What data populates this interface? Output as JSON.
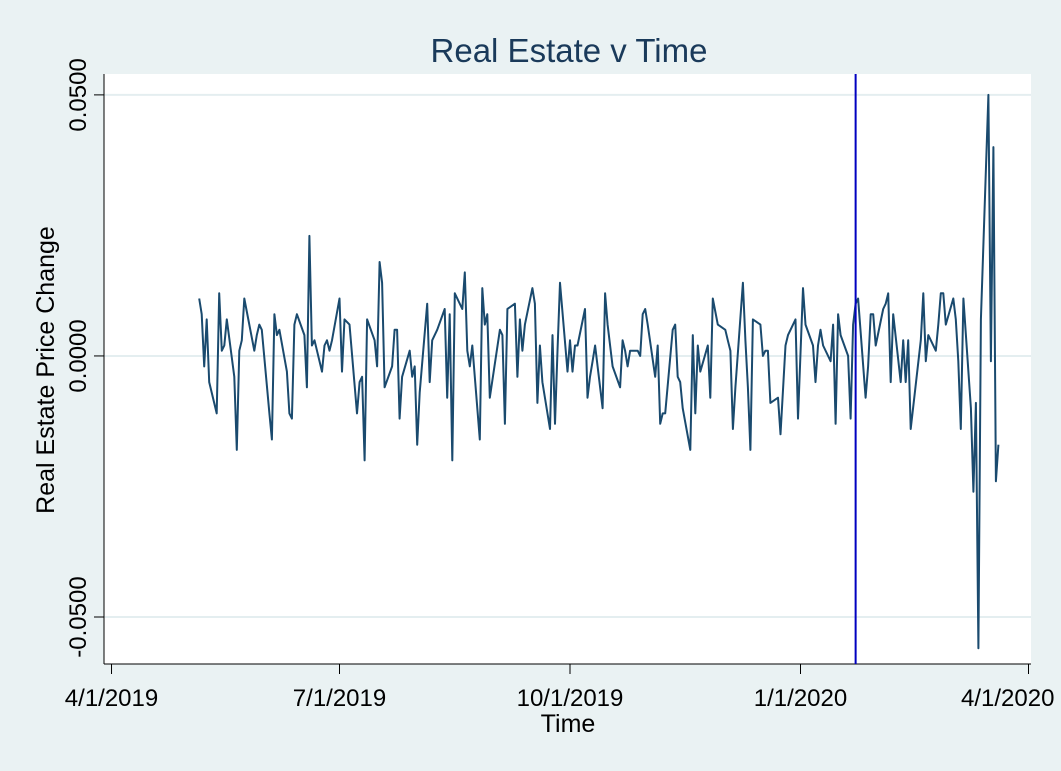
{
  "chart_data": {
    "type": "line",
    "title": "Real Estate v Time",
    "xlabel": "Time",
    "ylabel": "Real Estate Price Change",
    "x_ticks": [
      "4/1/2019",
      "7/1/2019",
      "10/1/2019",
      "1/1/2020",
      "4/1/2020"
    ],
    "y_ticks": [
      "-0.0500",
      "0.0000",
      "0.0500"
    ],
    "y_tick_values": [
      -0.05,
      0,
      0.05
    ],
    "xlim": [
      "2019-03-29",
      "2020-04-02"
    ],
    "ylim": [
      -0.059,
      0.054
    ],
    "grid": "horizontal",
    "reference_line": {
      "x": "2020-01-23",
      "color": "#0000c0"
    },
    "colors": {
      "series": "#1a4a6e",
      "background": "#eaf2f3",
      "plot_area": "#ffffff",
      "gridline": "#e4eef0"
    },
    "series": [
      {
        "values": [
          [
            "2019-05-06",
            0.011
          ],
          [
            "2019-05-07",
            0.008
          ],
          [
            "2019-05-08",
            -0.002
          ],
          [
            "2019-05-09",
            0.007
          ],
          [
            "2019-05-10",
            -0.005
          ],
          [
            "2019-05-13",
            -0.011
          ],
          [
            "2019-05-14",
            0.012
          ],
          [
            "2019-05-15",
            0.001
          ],
          [
            "2019-05-16",
            0.002
          ],
          [
            "2019-05-17",
            0.007
          ],
          [
            "2019-05-20",
            -0.004
          ],
          [
            "2019-05-21",
            -0.018
          ],
          [
            "2019-05-22",
            0.001
          ],
          [
            "2019-05-23",
            0.003
          ],
          [
            "2019-05-24",
            0.011
          ],
          [
            "2019-05-28",
            0.001
          ],
          [
            "2019-05-29",
            0.004
          ],
          [
            "2019-05-30",
            0.006
          ],
          [
            "2019-05-31",
            0.005
          ],
          [
            "2019-06-03",
            -0.011
          ],
          [
            "2019-06-04",
            -0.016
          ],
          [
            "2019-06-05",
            0.008
          ],
          [
            "2019-06-06",
            0.004
          ],
          [
            "2019-06-07",
            0.005
          ],
          [
            "2019-06-10",
            -0.003
          ],
          [
            "2019-06-11",
            -0.011
          ],
          [
            "2019-06-12",
            -0.012
          ],
          [
            "2019-06-13",
            0.006
          ],
          [
            "2019-06-14",
            0.008
          ],
          [
            "2019-06-17",
            0.004
          ],
          [
            "2019-06-18",
            -0.006
          ],
          [
            "2019-06-19",
            0.023
          ],
          [
            "2019-06-20",
            0.002
          ],
          [
            "2019-06-21",
            0.003
          ],
          [
            "2019-06-24",
            -0.003
          ],
          [
            "2019-06-25",
            0.002
          ],
          [
            "2019-06-26",
            0.003
          ],
          [
            "2019-06-27",
            0.001
          ],
          [
            "2019-06-28",
            0.003
          ],
          [
            "2019-07-01",
            0.011
          ],
          [
            "2019-07-02",
            -0.003
          ],
          [
            "2019-07-03",
            0.007
          ],
          [
            "2019-07-05",
            0.006
          ],
          [
            "2019-07-08",
            -0.011
          ],
          [
            "2019-07-09",
            -0.005
          ],
          [
            "2019-07-10",
            -0.004
          ],
          [
            "2019-07-11",
            -0.02
          ],
          [
            "2019-07-12",
            0.007
          ],
          [
            "2019-07-15",
            0.003
          ],
          [
            "2019-07-16",
            -0.002
          ],
          [
            "2019-07-17",
            0.018
          ],
          [
            "2019-07-18",
            0.014
          ],
          [
            "2019-07-19",
            -0.006
          ],
          [
            "2019-07-22",
            -0.002
          ],
          [
            "2019-07-23",
            0.005
          ],
          [
            "2019-07-24",
            0.005
          ],
          [
            "2019-07-25",
            -0.012
          ],
          [
            "2019-07-26",
            -0.004
          ],
          [
            "2019-07-29",
            0.001
          ],
          [
            "2019-07-30",
            -0.004
          ],
          [
            "2019-07-31",
            -0.002
          ],
          [
            "2019-08-01",
            -0.017
          ],
          [
            "2019-08-02",
            -0.007
          ],
          [
            "2019-08-05",
            0.01
          ],
          [
            "2019-08-06",
            -0.005
          ],
          [
            "2019-08-07",
            0.003
          ],
          [
            "2019-08-08",
            0.004
          ],
          [
            "2019-08-09",
            0.005
          ],
          [
            "2019-08-12",
            0.009
          ],
          [
            "2019-08-13",
            -0.008
          ],
          [
            "2019-08-14",
            0.008
          ],
          [
            "2019-08-15",
            -0.02
          ],
          [
            "2019-08-16",
            0.012
          ],
          [
            "2019-08-19",
            0.009
          ],
          [
            "2019-08-20",
            0.016
          ],
          [
            "2019-08-21",
            0.001
          ],
          [
            "2019-08-22",
            -0.002
          ],
          [
            "2019-08-23",
            0.002
          ],
          [
            "2019-08-26",
            -0.016
          ],
          [
            "2019-08-27",
            0.013
          ],
          [
            "2019-08-28",
            0.006
          ],
          [
            "2019-08-29",
            0.008
          ],
          [
            "2019-08-30",
            -0.008
          ],
          [
            "2019-09-03",
            0.005
          ],
          [
            "2019-09-04",
            0.004
          ],
          [
            "2019-09-05",
            -0.013
          ],
          [
            "2019-09-06",
            0.009
          ],
          [
            "2019-09-09",
            0.01
          ],
          [
            "2019-09-10",
            -0.004
          ],
          [
            "2019-09-11",
            0.007
          ],
          [
            "2019-09-12",
            0.001
          ],
          [
            "2019-09-13",
            0.006
          ],
          [
            "2019-09-16",
            0.013
          ],
          [
            "2019-09-17",
            0.01
          ],
          [
            "2019-09-18",
            -0.009
          ],
          [
            "2019-09-19",
            0.002
          ],
          [
            "2019-09-20",
            -0.005
          ],
          [
            "2019-09-23",
            -0.014
          ],
          [
            "2019-09-24",
            0.004
          ],
          [
            "2019-09-25",
            -0.013
          ],
          [
            "2019-09-26",
            0.001
          ],
          [
            "2019-09-27",
            0.014
          ],
          [
            "2019-09-30",
            -0.003
          ],
          [
            "2019-10-01",
            0.003
          ],
          [
            "2019-10-02",
            -0.003
          ],
          [
            "2019-10-03",
            0.002
          ],
          [
            "2019-10-04",
            0.002
          ],
          [
            "2019-10-07",
            0.009
          ],
          [
            "2019-10-08",
            -0.008
          ],
          [
            "2019-10-09",
            -0.004
          ],
          [
            "2019-10-10",
            -0.001
          ],
          [
            "2019-10-11",
            0.002
          ],
          [
            "2019-10-14",
            -0.01
          ],
          [
            "2019-10-15",
            0.012
          ],
          [
            "2019-10-16",
            0.006
          ],
          [
            "2019-10-17",
            0.002
          ],
          [
            "2019-10-18",
            -0.002
          ],
          [
            "2019-10-21",
            -0.006
          ],
          [
            "2019-10-22",
            0.003
          ],
          [
            "2019-10-23",
            0.001
          ],
          [
            "2019-10-24",
            -0.002
          ],
          [
            "2019-10-25",
            0.001
          ],
          [
            "2019-10-28",
            0.001
          ],
          [
            "2019-10-29",
            0.0
          ],
          [
            "2019-10-30",
            0.008
          ],
          [
            "2019-10-31",
            0.009
          ],
          [
            "2019-11-01",
            0.006
          ],
          [
            "2019-11-04",
            -0.004
          ],
          [
            "2019-11-05",
            0.002
          ],
          [
            "2019-11-06",
            -0.013
          ],
          [
            "2019-11-07",
            -0.011
          ],
          [
            "2019-11-08",
            -0.011
          ],
          [
            "2019-11-11",
            0.005
          ],
          [
            "2019-11-12",
            0.006
          ],
          [
            "2019-11-13",
            -0.004
          ],
          [
            "2019-11-14",
            -0.005
          ],
          [
            "2019-11-15",
            -0.01
          ],
          [
            "2019-11-18",
            -0.018
          ],
          [
            "2019-11-19",
            0.004
          ],
          [
            "2019-11-20",
            -0.011
          ],
          [
            "2019-11-21",
            0.002
          ],
          [
            "2019-11-22",
            -0.003
          ],
          [
            "2019-11-25",
            0.002
          ],
          [
            "2019-11-26",
            -0.008
          ],
          [
            "2019-11-27",
            0.011
          ],
          [
            "2019-11-29",
            0.006
          ],
          [
            "2019-12-02",
            0.005
          ],
          [
            "2019-12-03",
            0.003
          ],
          [
            "2019-12-04",
            0.001
          ],
          [
            "2019-12-05",
            -0.014
          ],
          [
            "2019-12-06",
            -0.006
          ],
          [
            "2019-12-09",
            0.014
          ],
          [
            "2019-12-10",
            0.003
          ],
          [
            "2019-12-11",
            -0.006
          ],
          [
            "2019-12-12",
            -0.018
          ],
          [
            "2019-12-13",
            0.007
          ],
          [
            "2019-12-16",
            0.006
          ],
          [
            "2019-12-17",
            0.0
          ],
          [
            "2019-12-18",
            0.001
          ],
          [
            "2019-12-19",
            0.001
          ],
          [
            "2019-12-20",
            -0.009
          ],
          [
            "2019-12-23",
            -0.008
          ],
          [
            "2019-12-24",
            -0.015
          ],
          [
            "2019-12-26",
            0.002
          ],
          [
            "2019-12-27",
            0.004
          ],
          [
            "2019-12-30",
            0.007
          ],
          [
            "2019-12-31",
            -0.012
          ],
          [
            "2020-01-02",
            0.013
          ],
          [
            "2020-01-03",
            0.006
          ],
          [
            "2020-01-06",
            0.002
          ],
          [
            "2020-01-07",
            -0.005
          ],
          [
            "2020-01-08",
            0.002
          ],
          [
            "2020-01-09",
            0.005
          ],
          [
            "2020-01-10",
            0.002
          ],
          [
            "2020-01-13",
            -0.001
          ],
          [
            "2020-01-14",
            0.006
          ],
          [
            "2020-01-15",
            -0.013
          ],
          [
            "2020-01-16",
            0.008
          ],
          [
            "2020-01-17",
            0.004
          ],
          [
            "2020-01-20",
            0.0
          ],
          [
            "2020-01-21",
            -0.012
          ],
          [
            "2020-01-22",
            0.006
          ],
          [
            "2020-01-23",
            0.01
          ],
          [
            "2020-01-24",
            0.011
          ],
          [
            "2020-01-27",
            -0.008
          ],
          [
            "2020-01-28",
            -0.002
          ],
          [
            "2020-01-29",
            0.008
          ],
          [
            "2020-01-30",
            0.008
          ],
          [
            "2020-01-31",
            0.002
          ],
          [
            "2020-02-03",
            0.009
          ],
          [
            "2020-02-04",
            0.01
          ],
          [
            "2020-02-05",
            0.012
          ],
          [
            "2020-02-06",
            -0.005
          ],
          [
            "2020-02-07",
            0.008
          ],
          [
            "2020-02-10",
            -0.005
          ],
          [
            "2020-02-11",
            0.003
          ],
          [
            "2020-02-12",
            -0.005
          ],
          [
            "2020-02-13",
            0.003
          ],
          [
            "2020-02-14",
            -0.014
          ],
          [
            "2020-02-18",
            0.003
          ],
          [
            "2020-02-19",
            0.012
          ],
          [
            "2020-02-20",
            -0.001
          ],
          [
            "2020-02-21",
            0.004
          ],
          [
            "2020-02-24",
            0.001
          ],
          [
            "2020-02-25",
            0.006
          ],
          [
            "2020-02-26",
            0.012
          ],
          [
            "2020-02-27",
            0.012
          ],
          [
            "2020-02-28",
            0.006
          ],
          [
            "2020-03-02",
            0.011
          ],
          [
            "2020-03-03",
            0.007
          ],
          [
            "2020-03-04",
            -0.001
          ],
          [
            "2020-03-05",
            -0.014
          ],
          [
            "2020-03-06",
            0.011
          ],
          [
            "2020-03-09",
            -0.01
          ],
          [
            "2020-03-10",
            -0.026
          ],
          [
            "2020-03-11",
            -0.009
          ],
          [
            "2020-03-12",
            -0.056
          ],
          [
            "2020-03-13",
            0.007
          ],
          [
            "2020-03-16",
            0.05
          ],
          [
            "2020-03-17",
            -0.001
          ],
          [
            "2020-03-18",
            0.04
          ],
          [
            "2020-03-19",
            -0.024
          ],
          [
            "2020-03-20",
            -0.017
          ]
        ]
      }
    ]
  }
}
